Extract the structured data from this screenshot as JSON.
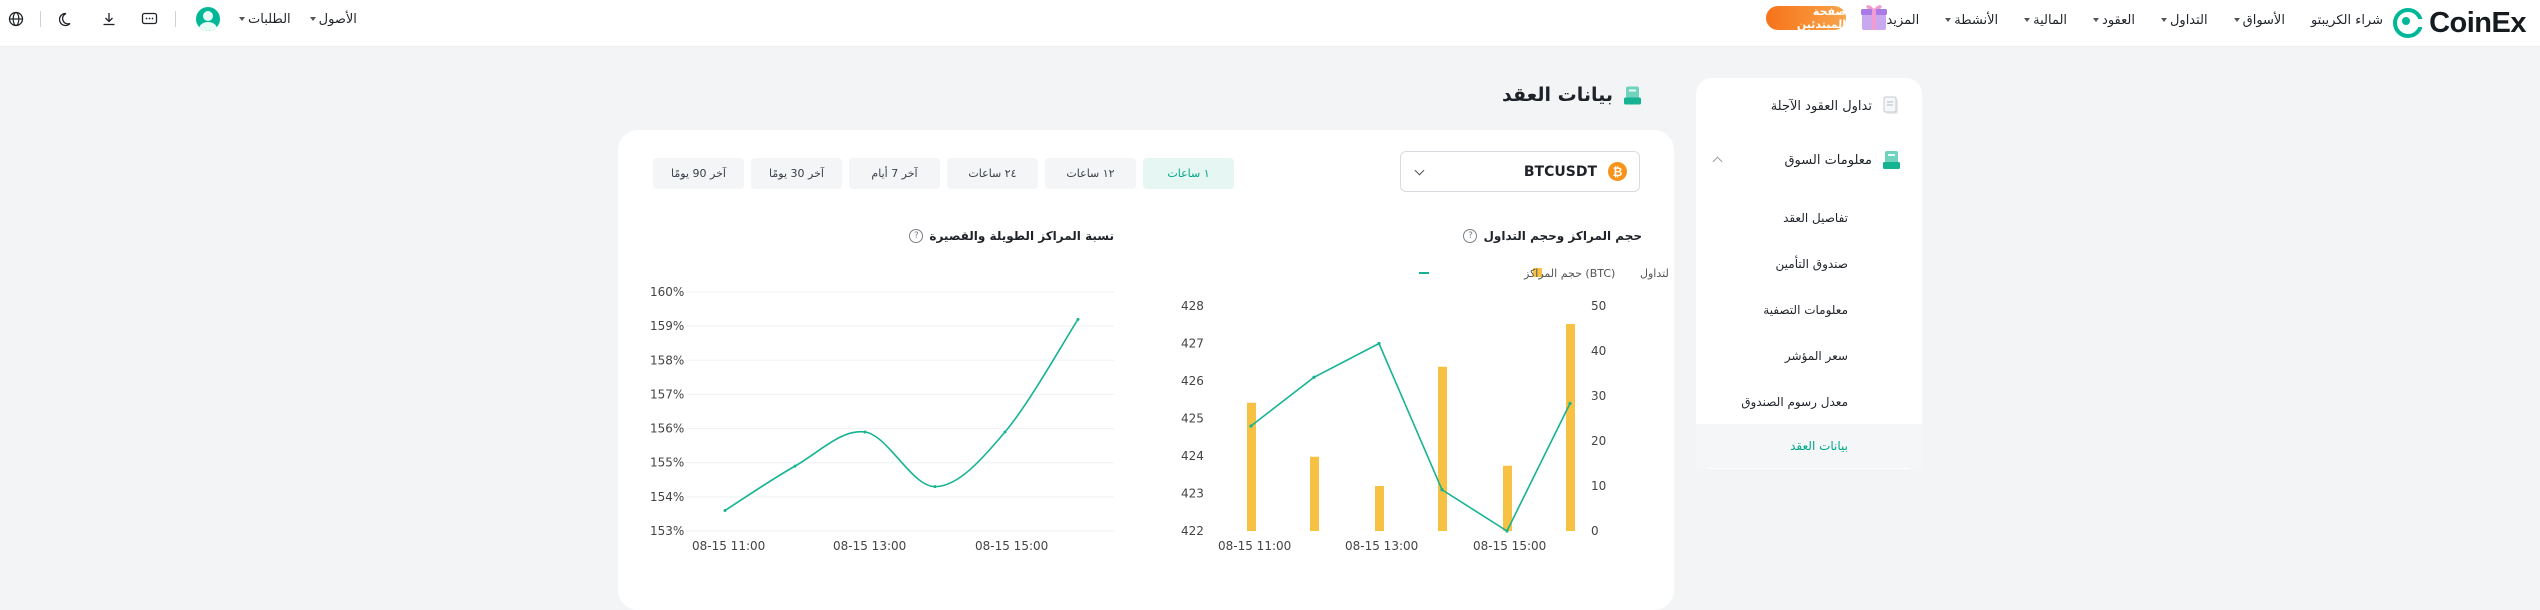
{
  "header": {
    "brand": "CoinEx",
    "nav": [
      {
        "label": "شراء الكريبتو",
        "caret": false
      },
      {
        "label": "الأسواق",
        "caret": true
      },
      {
        "label": "التداول",
        "caret": true
      },
      {
        "label": "العقود",
        "caret": true
      },
      {
        "label": "المالية",
        "caret": true
      },
      {
        "label": "الأنشطة",
        "caret": true
      },
      {
        "label": "المزيد",
        "caret": true
      }
    ],
    "promo_label": "صفحة المبتدئين",
    "orders_label": "الطلبات",
    "assets_label": "الأصول"
  },
  "sidebar": {
    "futures_label": "تداول العقود الآجلة",
    "market_info_label": "معلومات السوق",
    "items": [
      {
        "label": "تفاصيل العقد",
        "active": false
      },
      {
        "label": "صندوق التأمين",
        "active": false
      },
      {
        "label": "معلومات التصفية",
        "active": false
      },
      {
        "label": "سعر المؤشر",
        "active": false
      },
      {
        "label": "معدل رسوم الصندوق",
        "active": false
      },
      {
        "label": "بيانات العقد",
        "active": true
      }
    ]
  },
  "page": {
    "title": "بيانات العقد",
    "symbol": "BTCUSDT",
    "symbol_icon": "₿",
    "ranges": [
      {
        "label": "١ ساعات",
        "active": true
      },
      {
        "label": "١٢ ساعات",
        "active": false
      },
      {
        "label": "٢٤ ساعات",
        "active": false
      },
      {
        "label": "آخر 7 أيام",
        "active": false
      },
      {
        "label": "آخر 30 يومًا",
        "active": false
      },
      {
        "label": "آخر 90 يومًا",
        "active": false
      }
    ]
  },
  "colors": {
    "accent": "#00b897",
    "bar": "#f7c143",
    "line": "#16b393"
  },
  "chart_data": [
    {
      "type": "bar+line",
      "title": "حجم المراكز وحجم التداول",
      "legend": [
        "(BTC) حجم التداول",
        "(BTC) حجم المراكز"
      ],
      "x": [
        "08-15 10:30",
        "08-15 11:30",
        "08-15 12:30",
        "08-15 13:30",
        "08-15 14:30",
        "08-15 15:30"
      ],
      "xticks": [
        "08-15 11:00",
        "08-15 13:00",
        "08-15 15:00"
      ],
      "series": [
        {
          "name": "(BTC) حجم التداول",
          "type": "bar",
          "axis": "right",
          "values": [
            28.5,
            16.5,
            10,
            36.5,
            14.5,
            46
          ]
        },
        {
          "name": "(BTC) حجم المراكز",
          "type": "line",
          "axis": "left",
          "values": [
            424.8,
            426.1,
            427,
            423.1,
            422,
            425.4
          ]
        }
      ],
      "y_left": {
        "ticks": [
          "422",
          "423",
          "424",
          "425",
          "426",
          "427",
          "428"
        ],
        "lim": [
          422,
          428
        ]
      },
      "y_right": {
        "ticks": [
          "0",
          "10",
          "20",
          "30",
          "40",
          "50"
        ],
        "lim": [
          0,
          50
        ]
      }
    },
    {
      "type": "line",
      "title": "نسبة المراكز الطويلة والقصيرة",
      "x": [
        "08-15 10:30",
        "08-15 11:30",
        "08-15 12:30",
        "08-15 13:30",
        "08-15 14:30",
        "08-15 15:30"
      ],
      "xticks": [
        "08-15 11:00",
        "08-15 13:00",
        "08-15 15:00"
      ],
      "values": [
        153.6,
        154.9,
        155.9,
        154.3,
        155.9,
        159.2
      ],
      "yticks": [
        "153%",
        "154%",
        "155%",
        "156%",
        "157%",
        "158%",
        "159%",
        "160%"
      ],
      "ylim": [
        153,
        160
      ]
    }
  ]
}
